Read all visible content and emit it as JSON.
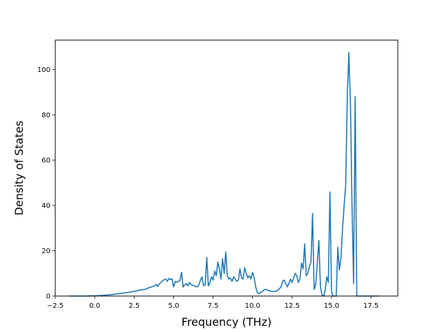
{
  "chart_data": {
    "type": "line",
    "title": "",
    "xlabel": "Frequency (THz)",
    "ylabel": "Density of States",
    "xlim": [
      -2.5,
      19.2
    ],
    "ylim": [
      0,
      113
    ],
    "x_ticks": [
      -2.5,
      0.0,
      2.5,
      5.0,
      7.5,
      10.0,
      12.5,
      15.0,
      17.5
    ],
    "x_tick_labels": [
      "−2.5",
      "0.0",
      "2.5",
      "5.0",
      "7.5",
      "10.0",
      "12.5",
      "15.0",
      "17.5"
    ],
    "y_ticks": [
      0,
      20,
      40,
      60,
      80,
      100
    ],
    "y_tick_labels": [
      "0",
      "20",
      "40",
      "60",
      "80",
      "100"
    ],
    "grid": false,
    "legend": "none",
    "series": [
      {
        "color": "#1f77b4",
        "x": [
          -1.6,
          -1.0,
          -0.5,
          0.0,
          0.5,
          1.0,
          1.5,
          2.0,
          2.3,
          2.6,
          2.9,
          3.2,
          3.4,
          3.6,
          3.8,
          3.9,
          4.0,
          4.1,
          4.2,
          4.35,
          4.5,
          4.6,
          4.7,
          4.8,
          4.9,
          5.0,
          5.1,
          5.2,
          5.3,
          5.4,
          5.5,
          5.6,
          5.7,
          5.8,
          5.9,
          6.0,
          6.1,
          6.2,
          6.3,
          6.4,
          6.5,
          6.6,
          6.7,
          6.8,
          6.9,
          7.0,
          7.1,
          7.2,
          7.3,
          7.4,
          7.5,
          7.6,
          7.7,
          7.8,
          7.9,
          8.0,
          8.1,
          8.2,
          8.3,
          8.4,
          8.5,
          8.6,
          8.7,
          8.8,
          8.9,
          9.0,
          9.1,
          9.2,
          9.3,
          9.4,
          9.5,
          9.6,
          9.7,
          9.8,
          9.9,
          10.0,
          10.1,
          10.2,
          10.3,
          10.4,
          10.6,
          10.8,
          11.0,
          11.2,
          11.4,
          11.6,
          11.8,
          11.9,
          12.0,
          12.1,
          12.2,
          12.3,
          12.4,
          12.5,
          12.6,
          12.7,
          12.8,
          12.9,
          13.0,
          13.1,
          13.2,
          13.3,
          13.4,
          13.5,
          13.6,
          13.7,
          13.8,
          13.9,
          14.0,
          14.1,
          14.2,
          14.3,
          14.4,
          14.5,
          14.6,
          14.7,
          14.8,
          14.9,
          15.0,
          15.1,
          15.2,
          15.3,
          15.4,
          15.5,
          15.6,
          15.7,
          15.8,
          15.9,
          16.0,
          16.1,
          16.2,
          16.3,
          16.4,
          16.5,
          16.6,
          16.8,
          17.0,
          17.5,
          18.0
        ],
        "y": [
          0,
          0,
          0,
          0.1,
          0.3,
          0.6,
          1.0,
          1.5,
          1.8,
          2.2,
          2.7,
          3.0,
          3.6,
          4.0,
          4.5,
          5.2,
          4.2,
          5.5,
          6.0,
          7.0,
          7.5,
          6.5,
          7.8,
          7.2,
          7.6,
          4.0,
          6.5,
          6.0,
          6.5,
          6.8,
          10.5,
          4.0,
          5.0,
          5.5,
          4.5,
          6.0,
          5.0,
          4.8,
          4.5,
          4.2,
          4.0,
          5.0,
          7.0,
          8.5,
          4.5,
          5.0,
          17.0,
          4.5,
          6.0,
          8.5,
          7.0,
          11.0,
          9.0,
          15.0,
          12.0,
          7.5,
          16.5,
          10.0,
          19.5,
          9.0,
          7.5,
          8.0,
          6.5,
          8.5,
          7.5,
          6.5,
          7.0,
          12.0,
          8.0,
          7.5,
          12.5,
          10.0,
          8.0,
          9.0,
          7.5,
          10.5,
          8.0,
          4.0,
          1.5,
          1.0,
          2.0,
          3.0,
          2.5,
          2.0,
          2.0,
          2.5,
          4.0,
          6.5,
          7.0,
          5.5,
          4.0,
          5.5,
          7.5,
          6.0,
          8.0,
          10.0,
          9.0,
          6.0,
          7.5,
          14.5,
          12.0,
          23.0,
          9.0,
          10.0,
          13.0,
          15.0,
          36.5,
          3.0,
          5.0,
          14.5,
          24.5,
          4.0,
          0.5,
          0,
          2.5,
          8.5,
          6.0,
          46.0,
          2.0,
          0,
          0,
          0,
          21.5,
          11.5,
          17.0,
          30.0,
          40.0,
          49.0,
          88.0,
          107.5,
          85.0,
          40.0,
          5.5,
          88.0,
          0,
          0,
          0,
          0,
          0
        ]
      }
    ]
  }
}
